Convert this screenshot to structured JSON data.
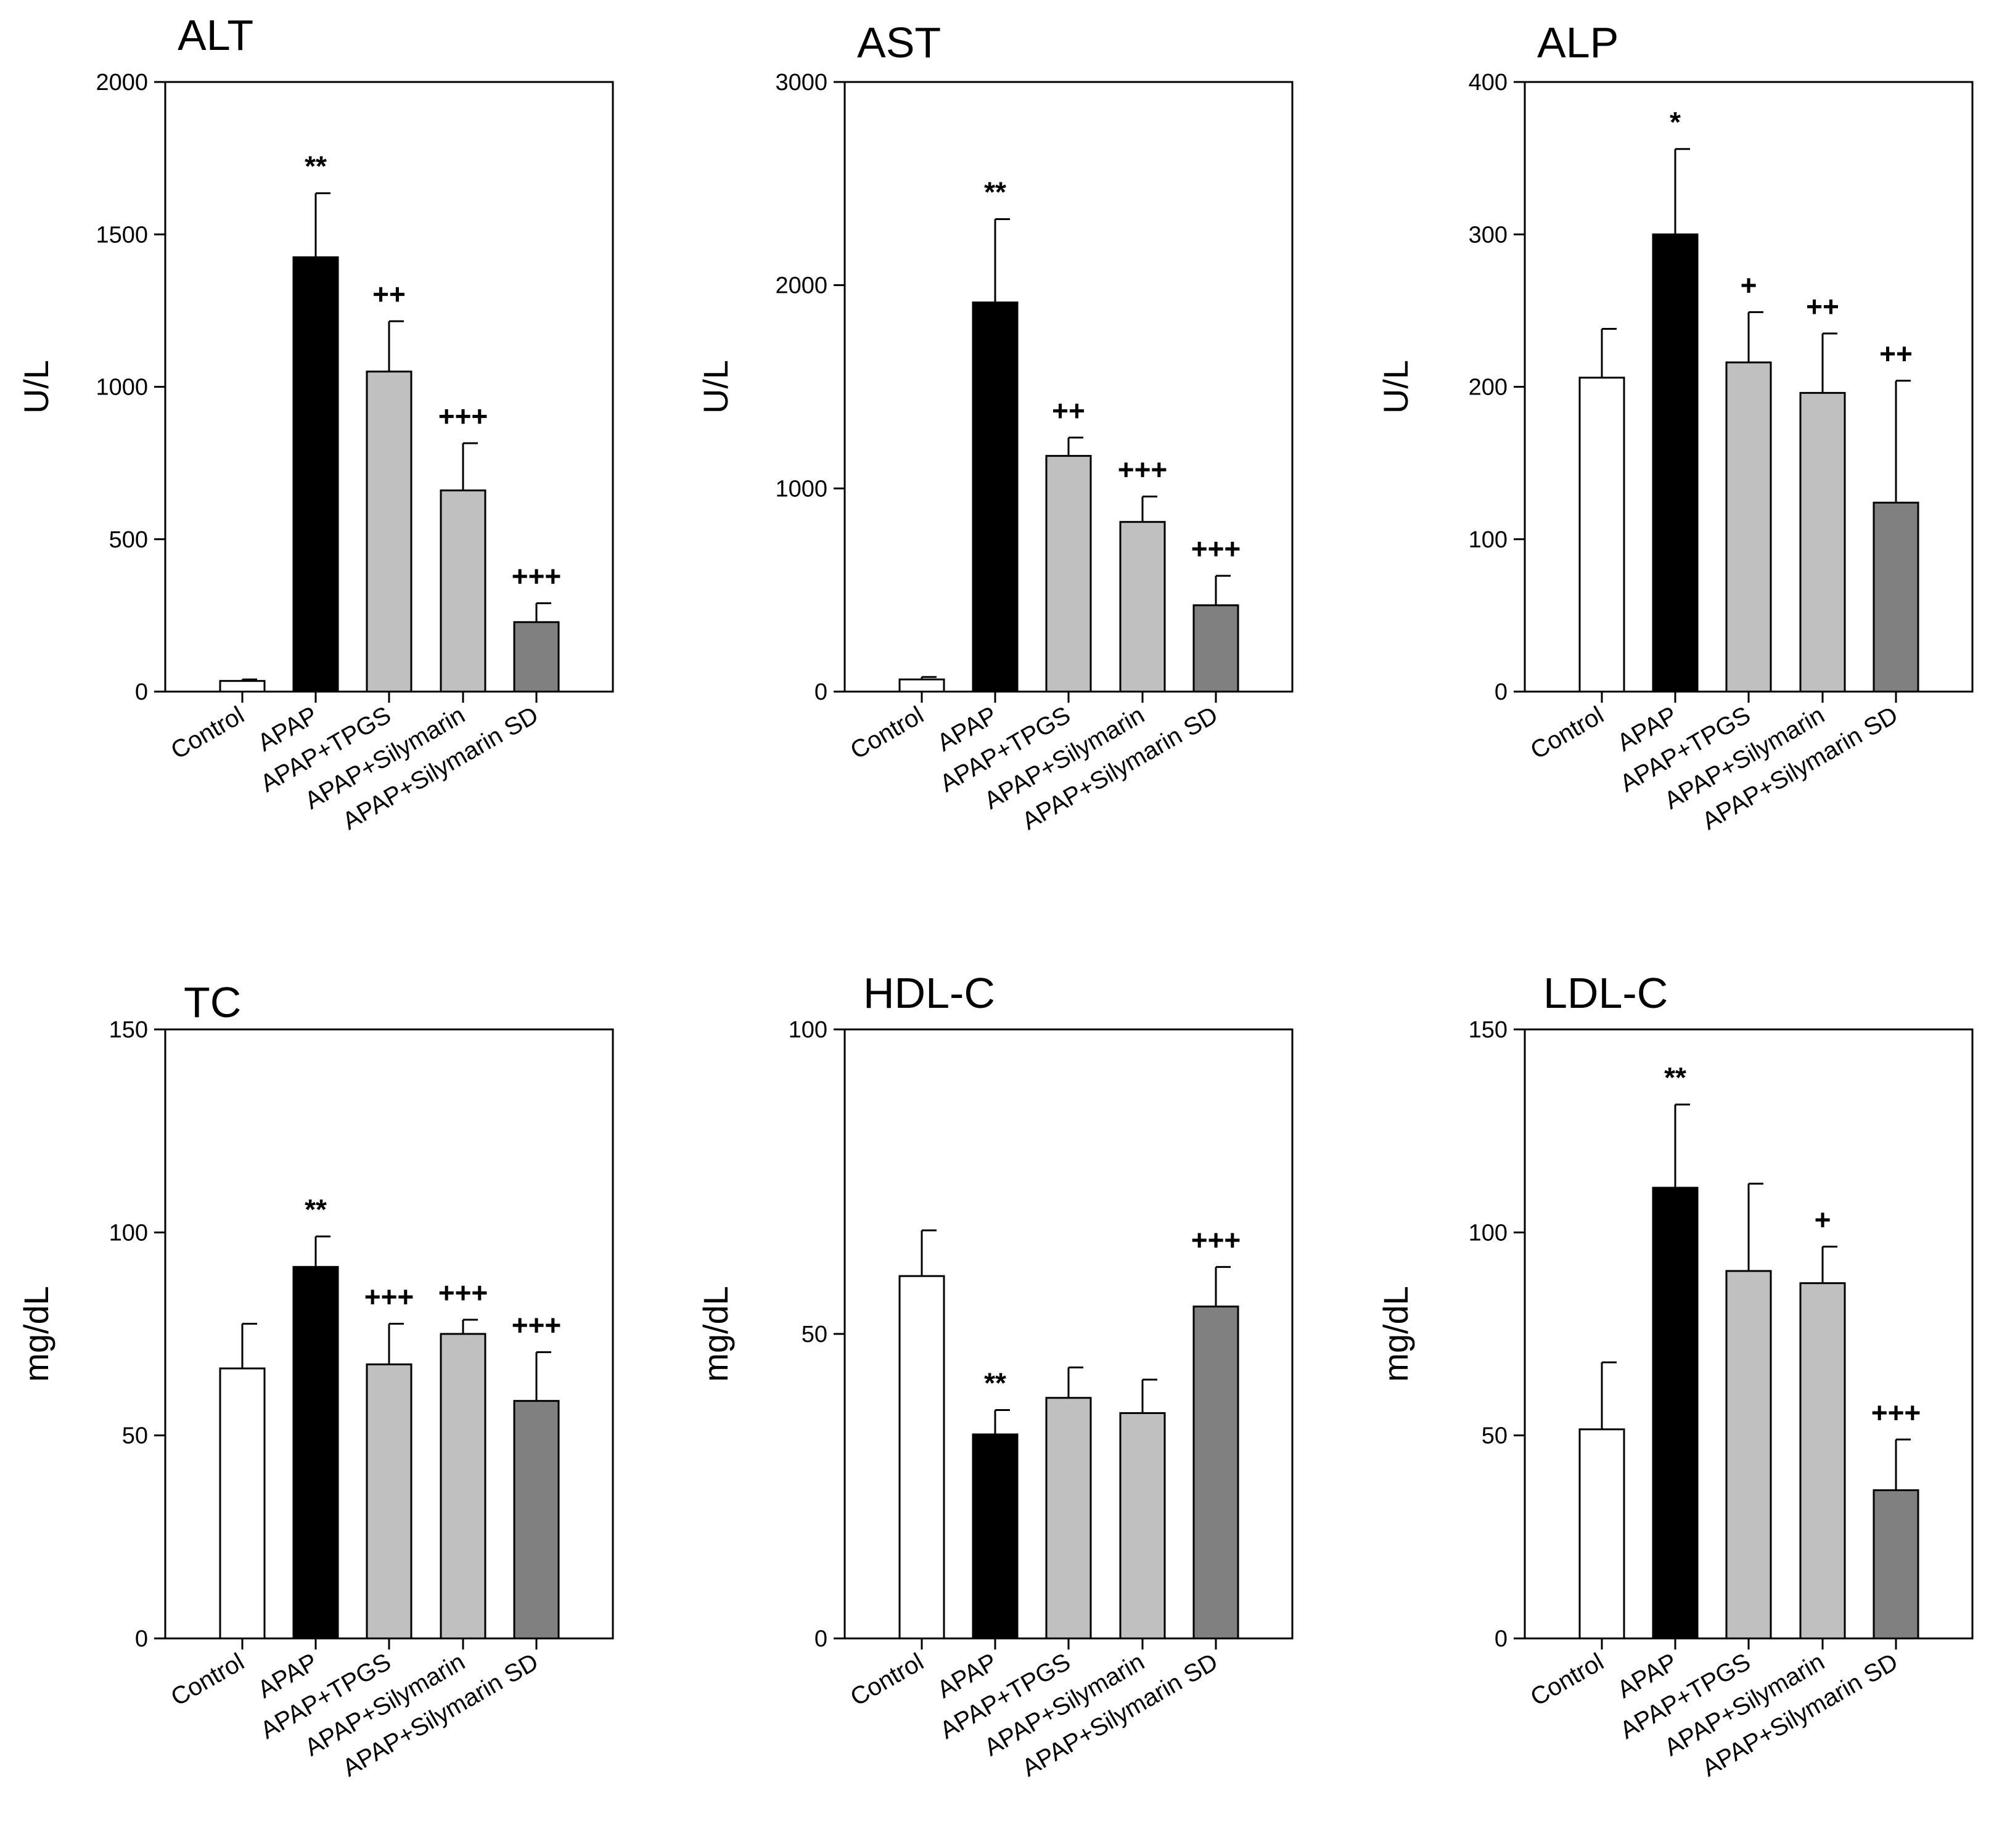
{
  "chart_data": [
    {
      "type": "bar",
      "title": "ALT",
      "ylabel": "U/L",
      "xlabel": "",
      "ylim": [
        0,
        2000
      ],
      "yticks": [
        "0",
        "500",
        "1000",
        "1500",
        "2000"
      ],
      "categories": [
        "Control",
        "APAP",
        "APAP+TPGS",
        "APAP+Silymarin",
        "APAP+Silymarin SD"
      ],
      "values": [
        35,
        1425,
        1050,
        660,
        228
      ],
      "errors": [
        5,
        210,
        165,
        155,
        62
      ],
      "significance": [
        "",
        "**",
        "++",
        "+++",
        "+++"
      ],
      "bar_colors": [
        "#ffffff",
        "#000000",
        "#c0c0c0",
        "#c0c0c0",
        "#808080"
      ],
      "grid": false
    },
    {
      "type": "bar",
      "title": "AST",
      "ylabel": "U/L",
      "xlabel": "",
      "ylim": [
        0,
        3000
      ],
      "yticks": [
        "0",
        "1000",
        "2000",
        "3000"
      ],
      "categories": [
        "Control",
        "APAP",
        "APAP+TPGS",
        "APAP+Silymarin",
        "APAP+Silymarin SD"
      ],
      "values": [
        60,
        1915,
        1160,
        835,
        425
      ],
      "errors": [
        12,
        410,
        90,
        125,
        145
      ],
      "significance": [
        "",
        "**",
        "++",
        "+++",
        "+++"
      ],
      "bar_colors": [
        "#ffffff",
        "#000000",
        "#c0c0c0",
        "#c0c0c0",
        "#808080"
      ],
      "grid": false
    },
    {
      "type": "bar",
      "title": "ALP",
      "ylabel": "U/L",
      "xlabel": "",
      "ylim": [
        0,
        400
      ],
      "yticks": [
        "0",
        "100",
        "200",
        "300",
        "400"
      ],
      "categories": [
        "Control",
        "APAP",
        "APAP+TPGS",
        "APAP+Silymarin",
        "APAP+Silymarin SD"
      ],
      "values": [
        206,
        300,
        216,
        196,
        124
      ],
      "errors": [
        32,
        56,
        33,
        39,
        80
      ],
      "significance": [
        "",
        "*",
        "+",
        "++",
        "++"
      ],
      "bar_colors": [
        "#ffffff",
        "#000000",
        "#c0c0c0",
        "#c0c0c0",
        "#808080"
      ],
      "grid": false
    },
    {
      "type": "bar",
      "title": "TC",
      "ylabel": "mg/dL",
      "xlabel": "",
      "ylim": [
        0,
        150
      ],
      "yticks": [
        "0",
        "50",
        "100",
        "150"
      ],
      "categories": [
        "Control",
        "APAP",
        "APAP+TPGS",
        "APAP+Silymarin",
        "APAP+Silymarin SD"
      ],
      "values": [
        66.5,
        91.5,
        67.5,
        75,
        58.5
      ],
      "errors": [
        11,
        7.5,
        10,
        3.5,
        12
      ],
      "significance": [
        "",
        "**",
        "+++",
        "+++",
        "+++"
      ],
      "bar_colors": [
        "#ffffff",
        "#000000",
        "#c0c0c0",
        "#c0c0c0",
        "#808080"
      ],
      "grid": false
    },
    {
      "type": "bar",
      "title": "HDL-C",
      "ylabel": "mg/dL",
      "xlabel": "",
      "ylim": [
        0,
        100
      ],
      "yticks": [
        "0",
        "50",
        "100"
      ],
      "categories": [
        "Control",
        "APAP",
        "APAP+TPGS",
        "APAP+Silymarin",
        "APAP+Silymarin SD"
      ],
      "values": [
        59.5,
        33.5,
        39.5,
        37,
        54.5
      ],
      "errors": [
        7.5,
        4,
        5,
        5.5,
        6.5
      ],
      "significance": [
        "",
        "**",
        "",
        "",
        "+++"
      ],
      "bar_colors": [
        "#ffffff",
        "#000000",
        "#c0c0c0",
        "#c0c0c0",
        "#808080"
      ],
      "grid": false
    },
    {
      "type": "bar",
      "title": "LDL-C",
      "ylabel": "mg/dL",
      "xlabel": "",
      "ylim": [
        0,
        150
      ],
      "yticks": [
        "0",
        "50",
        "100",
        "150"
      ],
      "categories": [
        "Control",
        "APAP",
        "APAP+TPGS",
        "APAP+Silymarin",
        "APAP+Silymarin SD"
      ],
      "values": [
        51.5,
        111,
        90.5,
        87.5,
        36.5
      ],
      "errors": [
        16.5,
        20.5,
        21.5,
        9,
        12.5
      ],
      "significance": [
        "",
        "**",
        "",
        "+",
        "+++"
      ],
      "bar_colors": [
        "#ffffff",
        "#000000",
        "#c0c0c0",
        "#c0c0c0",
        "#808080"
      ],
      "grid": false
    }
  ]
}
